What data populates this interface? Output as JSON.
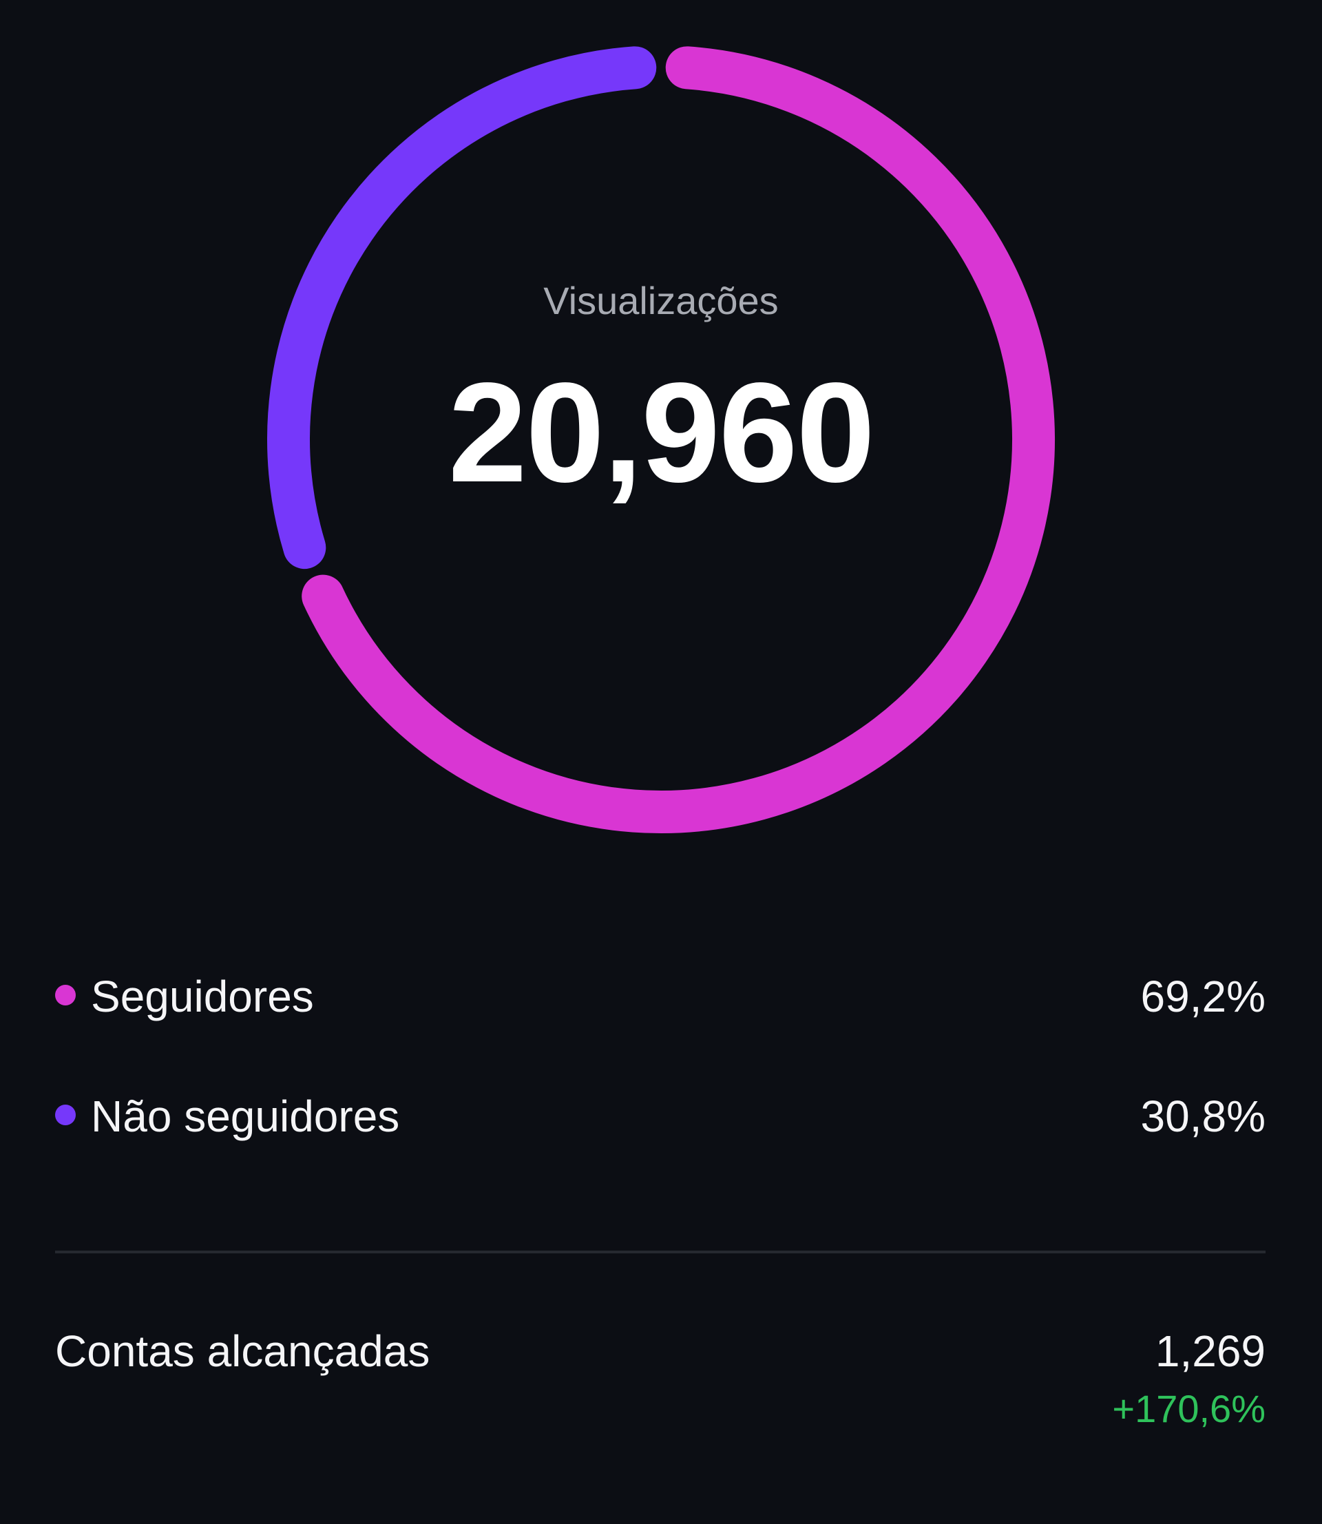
{
  "chart_data": {
    "type": "pie",
    "variant": "donut",
    "center_label": "Visualizações",
    "center_value": "20,960",
    "series": [
      {
        "name": "Seguidores",
        "value": 69.2,
        "label": "69,2%",
        "color": "#d936d3"
      },
      {
        "name": "Não seguidores",
        "value": 30.8,
        "label": "30,8%",
        "color": "#7638fa"
      }
    ]
  },
  "reach": {
    "label": "Contas alcançadas",
    "value": "1,269",
    "change": "+170,6%",
    "change_color": "#2fc25b"
  }
}
